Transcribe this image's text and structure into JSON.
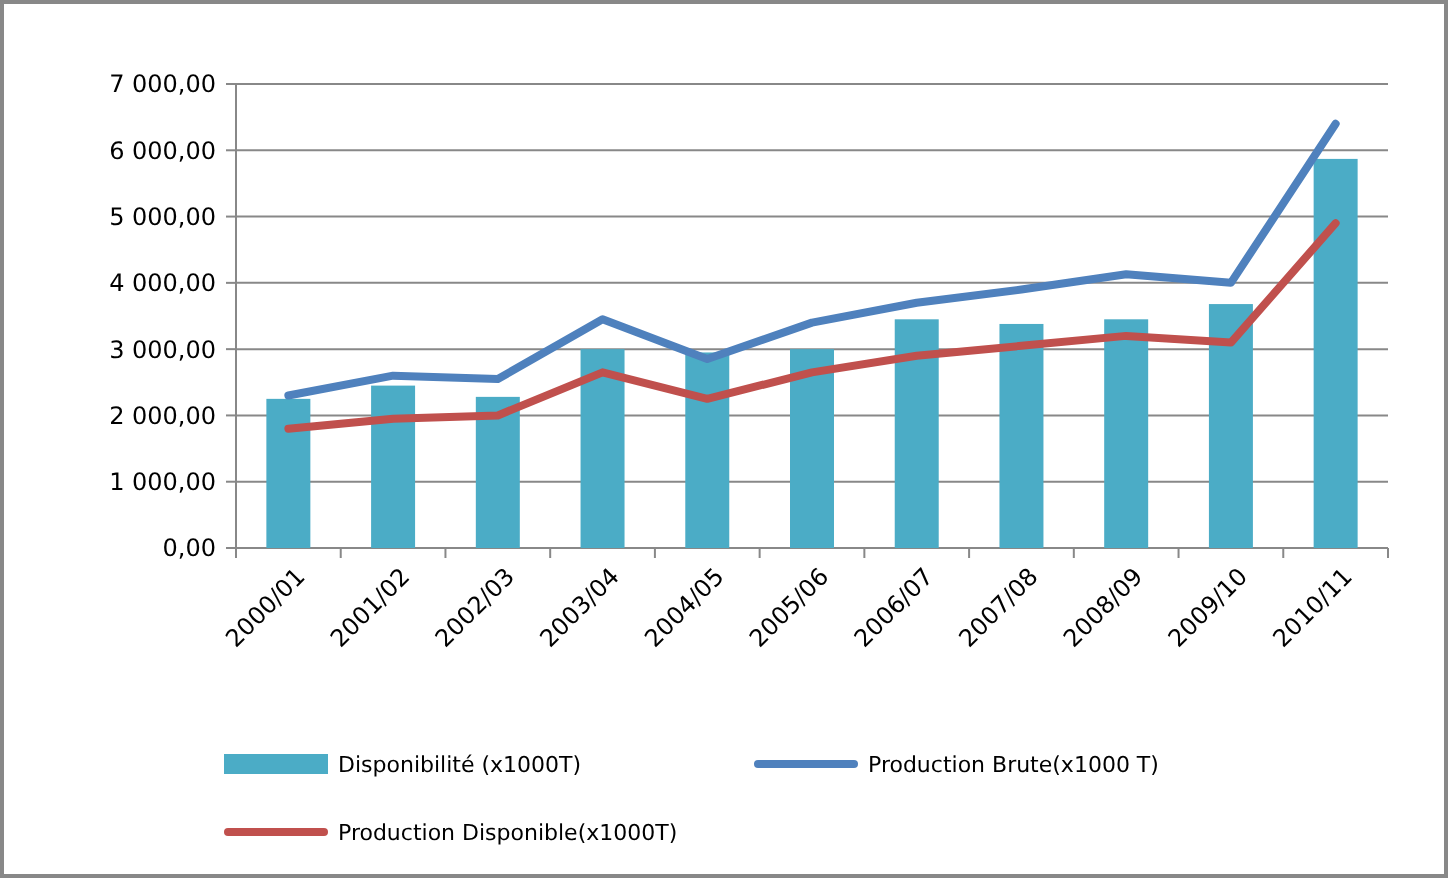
{
  "chart_data": {
    "type": "bar",
    "categories": [
      "2000/01",
      "2001/02",
      "2002/03",
      "2003/04",
      "2004/05",
      "2005/06",
      "2006/07",
      "2007/08",
      "2008/09",
      "2009/10",
      "2010/11"
    ],
    "series": [
      {
        "name": "Disponibilité (x1000T)",
        "color": "#4bacc6",
        "values": [
          2250,
          2450,
          2280,
          3000,
          2950,
          3000,
          3450,
          3380,
          3450,
          3680,
          5870
        ]
      },
      {
        "name": "Production Brute(x1000 T)",
        "type": "line",
        "color": "#4f81bd",
        "values": [
          2300,
          2600,
          2550,
          3450,
          2850,
          3400,
          3700,
          3900,
          4130,
          4000,
          6400
        ]
      },
      {
        "name": "Production Disponible(x1000T)",
        "type": "line",
        "color": "#c0504d",
        "values": [
          1800,
          1950,
          2000,
          2650,
          2250,
          2650,
          2900,
          3050,
          3200,
          3100,
          4900
        ]
      }
    ],
    "ylim": [
      0,
      7000
    ],
    "yticks": [
      {
        "value": 0,
        "label": "0,00"
      },
      {
        "value": 1000,
        "label": "1 000,00"
      },
      {
        "value": 2000,
        "label": "2 000,00"
      },
      {
        "value": 3000,
        "label": "3 000,00"
      },
      {
        "value": 4000,
        "label": "4 000,00"
      },
      {
        "value": 5000,
        "label": "5 000,00"
      },
      {
        "value": 6000,
        "label": "6 000,00"
      },
      {
        "value": 7000,
        "label": "7 000,00"
      }
    ],
    "grid": "y",
    "legend": "bottom",
    "marker": "none",
    "line_style": "solid"
  }
}
